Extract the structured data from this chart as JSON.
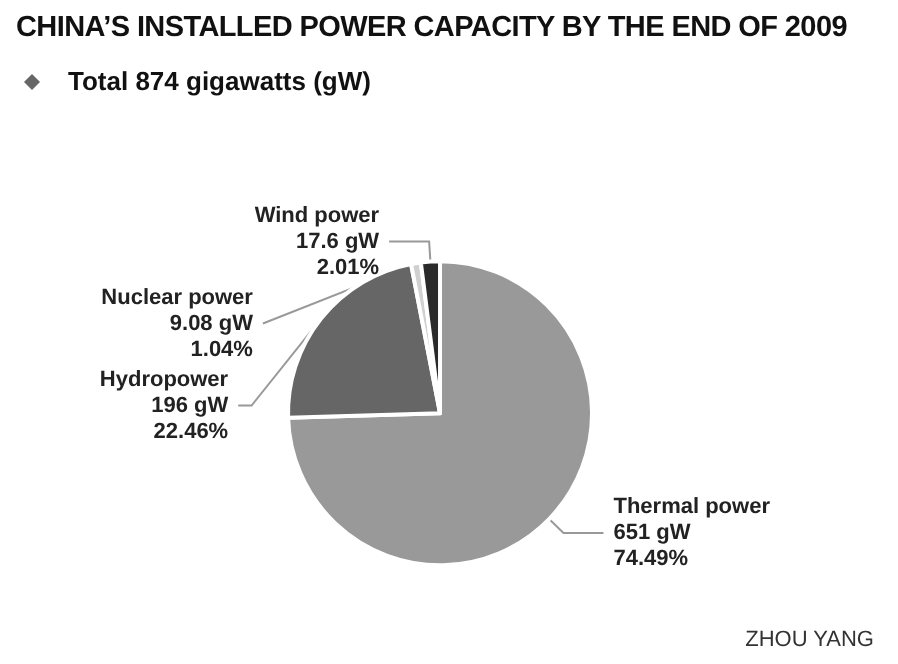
{
  "chart_data": {
    "type": "pie",
    "title": "CHINA’S INSTALLED POWER CAPACITY BY THE END OF 2009",
    "subtitle": "Total 874 gigawatts (gW)",
    "categories": [
      "Thermal power",
      "Hydropower",
      "Nuclear power",
      "Wind power"
    ],
    "values": [
      651,
      196,
      9.08,
      17.6
    ],
    "value_labels": [
      "651 gW\n74.49%",
      "196 gW\n22.46%",
      "9.08 gW\n1.04%",
      "17.6 gW\n2.01%"
    ],
    "colors": [
      "#999999",
      "#666666",
      "#d0d0d0",
      "#2a2a2a"
    ],
    "annotations": [
      "ZHOU YANG"
    ],
    "legend": false
  }
}
